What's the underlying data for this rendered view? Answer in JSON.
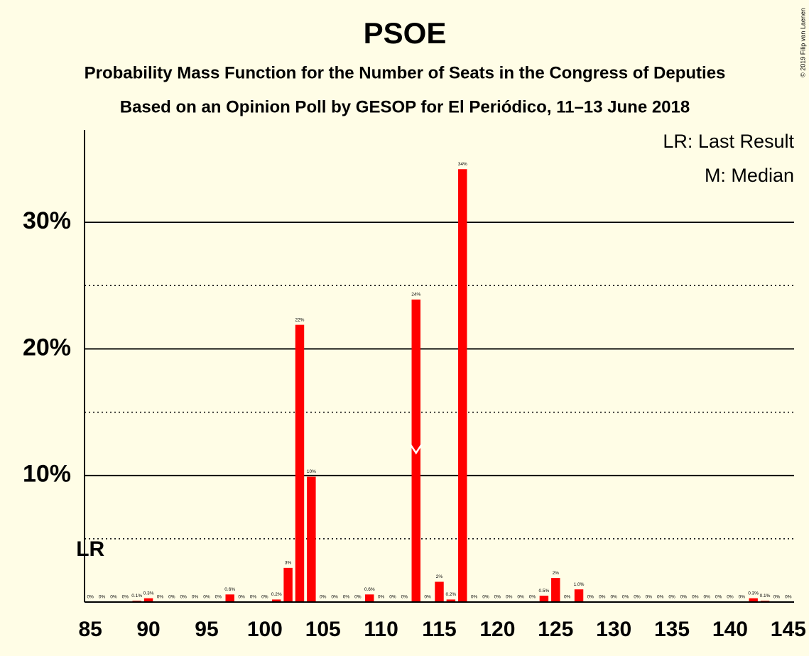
{
  "chart_data": {
    "type": "bar",
    "title": "PSOE",
    "subtitle": "Probability Mass Function for the Number of Seats in the Congress of Deputies",
    "subtitle2": "Based on an Opinion Poll by GESOP for El Periódico, 11–13 June 2018",
    "copyright": "© 2019 Filip van Laenen",
    "x": [
      85,
      86,
      87,
      88,
      89,
      90,
      91,
      92,
      93,
      94,
      95,
      96,
      97,
      98,
      99,
      100,
      101,
      102,
      103,
      104,
      105,
      106,
      107,
      108,
      109,
      110,
      111,
      112,
      113,
      114,
      115,
      116,
      117,
      118,
      119,
      120,
      121,
      122,
      123,
      124,
      125,
      126,
      127,
      128,
      129,
      130,
      131,
      132,
      133,
      134,
      135,
      136,
      137,
      138,
      139,
      140,
      141,
      142,
      143,
      144,
      145
    ],
    "values": [
      0,
      0,
      0,
      0,
      0.1,
      0.3,
      0,
      0,
      0,
      0,
      0,
      0,
      0.6,
      0,
      0,
      0,
      0.2,
      2.7,
      21.9,
      9.9,
      0,
      0,
      0,
      0,
      0.6,
      0,
      0,
      0,
      23.9,
      0,
      1.6,
      0.2,
      34.2,
      0,
      0,
      0,
      0,
      0,
      0,
      0.5,
      1.9,
      0,
      1.0,
      0,
      0,
      0,
      0,
      0,
      0,
      0,
      0,
      0,
      0,
      0,
      0,
      0,
      0,
      0.3,
      0.1,
      0,
      0
    ],
    "value_labels": [
      "0%",
      "0%",
      "0%",
      "0%",
      "0.1%",
      "0.3%",
      "0%",
      "0%",
      "0%",
      "0%",
      "0%",
      "0%",
      "0.6%",
      "0%",
      "0%",
      "0%",
      "0.2%",
      "3%",
      "22%",
      "10%",
      "0%",
      "0%",
      "0%",
      "0%",
      "0.6%",
      "0%",
      "0%",
      "0%",
      "24%",
      "0%",
      "2%",
      "0.2%",
      "34%",
      "0%",
      "0%",
      "0%",
      "0%",
      "0%",
      "0%",
      "0.5%",
      "2%",
      "0%",
      "1.0%",
      "0%",
      "0%",
      "0%",
      "0%",
      "0%",
      "0%",
      "0%",
      "0%",
      "0%",
      "0%",
      "0%",
      "0%",
      "0%",
      "0%",
      "0.3%",
      "0.1%",
      "0%",
      "0%"
    ],
    "color": "#ff0000",
    "xlim": [
      84.5,
      145.5
    ],
    "xticks": [
      85,
      90,
      95,
      100,
      105,
      110,
      115,
      120,
      125,
      130,
      135,
      140,
      145
    ],
    "ylim": [
      0,
      37.3
    ],
    "yticks": [
      {
        "value": 10,
        "label": "10%"
      },
      {
        "value": 20,
        "label": "20%"
      },
      {
        "value": 30,
        "label": "30%"
      }
    ],
    "minor_gridlines": [
      5,
      15,
      25
    ],
    "grid": true,
    "last_result": 85,
    "last_result_label": "LR",
    "median": 113,
    "legend": [
      "LR: Last Result",
      "M: Median"
    ],
    "legend_position": "upper right"
  }
}
